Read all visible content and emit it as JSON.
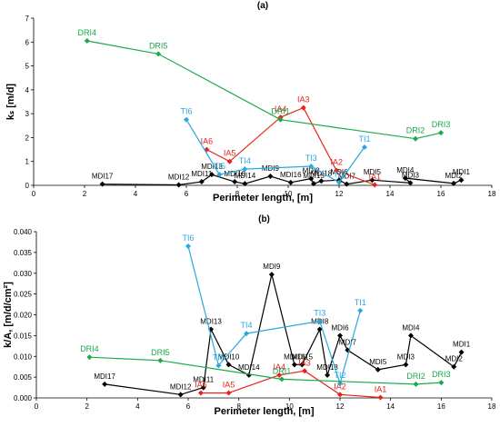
{
  "chart_data": [
    {
      "type": "line",
      "title": "(a)",
      "xlabel": "Perimeter length, [m]",
      "ylabel": "kₛ [m/d]",
      "xlim": [
        0,
        18
      ],
      "ylim": [
        0,
        7
      ],
      "xticks": [
        "0",
        "2",
        "4",
        "6",
        "8",
        "10",
        "12",
        "14",
        "16",
        "18"
      ],
      "yticks": [
        "0",
        "1",
        "2",
        "3",
        "4",
        "5",
        "6",
        "7"
      ],
      "grid": false,
      "series": [
        {
          "color": "#000000",
          "points": [
            {
              "label": "MDI17",
              "x": 2.7,
              "y": 0.05
            },
            {
              "label": "MDI12",
              "x": 5.7,
              "y": 0.02
            },
            {
              "label": "MDI11",
              "x": 6.6,
              "y": 0.15
            },
            {
              "label": "MDI13",
              "x": 7.0,
              "y": 0.45
            },
            {
              "label": "MDI10",
              "x": 7.9,
              "y": 0.15
            },
            {
              "label": "MDI14",
              "x": 8.3,
              "y": 0.07
            },
            {
              "label": "MDI9",
              "x": 9.3,
              "y": 0.38
            },
            {
              "label": "MDI16",
              "x": 10.1,
              "y": 0.12
            },
            {
              "label": "MDI8",
              "x": 10.9,
              "y": 0.28
            },
            {
              "label": "MDI15",
              "x": 11.0,
              "y": 0.07
            },
            {
              "label": "MDI18",
              "x": 11.3,
              "y": 0.18
            },
            {
              "label": "MDI6",
              "x": 12.0,
              "y": 0.22
            },
            {
              "label": "MDI7",
              "x": 12.3,
              "y": 0.05
            },
            {
              "label": "MDI5",
              "x": 13.3,
              "y": 0.22
            },
            {
              "label": "MDI3",
              "x": 14.8,
              "y": 0.1
            },
            {
              "label": "MDI4",
              "x": 14.6,
              "y": 0.3
            },
            {
              "label": "MDI2",
              "x": 16.5,
              "y": 0.08
            },
            {
              "label": "MDI1",
              "x": 16.8,
              "y": 0.22
            }
          ]
        },
        {
          "color": "#e8231a",
          "points": [
            {
              "label": "IA6",
              "x": 6.8,
              "y": 1.5
            },
            {
              "label": "IA5",
              "x": 7.7,
              "y": 1.0
            },
            {
              "label": "IA4",
              "x": 9.7,
              "y": 2.85
            },
            {
              "label": "IA3",
              "x": 10.6,
              "y": 3.25
            },
            {
              "label": "IA2",
              "x": 11.9,
              "y": 0.62
            },
            {
              "label": "IA1",
              "x": 13.4,
              "y": 0.02
            }
          ]
        },
        {
          "color": "#29a8e0",
          "points": [
            {
              "label": "TI6",
              "x": 6.0,
              "y": 2.75
            },
            {
              "label": "TI5",
              "x": 7.3,
              "y": 0.45
            },
            {
              "label": "TI4",
              "x": 8.3,
              "y": 0.68
            },
            {
              "label": "TI3",
              "x": 10.9,
              "y": 0.8
            },
            {
              "label": "TI2",
              "x": 12.0,
              "y": 0.12
            },
            {
              "label": "TI1",
              "x": 13.0,
              "y": 1.6
            }
          ]
        },
        {
          "color": "#1aaa4a",
          "points": [
            {
              "label": "DRI4",
              "x": 2.1,
              "y": 6.05
            },
            {
              "label": "DRI5",
              "x": 4.9,
              "y": 5.5
            },
            {
              "label": "DRI1",
              "x": 9.7,
              "y": 2.75
            },
            {
              "label": "DRI2",
              "x": 15.0,
              "y": 1.95
            },
            {
              "label": "DRI3",
              "x": 16.0,
              "y": 2.2
            }
          ]
        }
      ]
    },
    {
      "type": "line",
      "title": "(b)",
      "xlabel": "Perimeter length, [m]",
      "ylabel": "k/A, [m/d/cm²]",
      "xlim": [
        0,
        18
      ],
      "ylim": [
        0,
        0.04
      ],
      "xticks": [
        "0",
        "2",
        "4",
        "6",
        "8",
        "10",
        "12",
        "14",
        "16",
        "18"
      ],
      "yticks": [
        "0.000",
        "0.005",
        "0.010",
        "0.015",
        "0.020",
        "0.025",
        "0.030",
        "0.035",
        "0.040"
      ],
      "grid": false,
      "series": [
        {
          "color": "#000000",
          "points": [
            {
              "label": "MDI17",
              "x": 2.7,
              "y": 0.0033
            },
            {
              "label": "MDI12",
              "x": 5.7,
              "y": 0.0008
            },
            {
              "label": "MDI11",
              "x": 6.6,
              "y": 0.0025
            },
            {
              "label": "MDI13",
              "x": 6.9,
              "y": 0.0165
            },
            {
              "label": "MDI10",
              "x": 7.6,
              "y": 0.008
            },
            {
              "label": "MDI14",
              "x": 8.4,
              "y": 0.0055
            },
            {
              "label": "MDI9",
              "x": 9.3,
              "y": 0.0297
            },
            {
              "label": "MDI16",
              "x": 10.2,
              "y": 0.008
            },
            {
              "label": "MDI15",
              "x": 10.5,
              "y": 0.008
            },
            {
              "label": "MDI8",
              "x": 11.2,
              "y": 0.0165
            },
            {
              "label": "MDI18",
              "x": 11.5,
              "y": 0.0055
            },
            {
              "label": "MDI6",
              "x": 12.0,
              "y": 0.015
            },
            {
              "label": "MDI7",
              "x": 12.3,
              "y": 0.0115
            },
            {
              "label": "MDI5",
              "x": 13.5,
              "y": 0.0068
            },
            {
              "label": "MDI3",
              "x": 14.6,
              "y": 0.008
            },
            {
              "label": "MDI4",
              "x": 14.8,
              "y": 0.015
            },
            {
              "label": "MDI2",
              "x": 16.5,
              "y": 0.0075
            },
            {
              "label": "MDI1",
              "x": 16.8,
              "y": 0.011
            }
          ]
        },
        {
          "color": "#e8231a",
          "points": [
            {
              "label": "IA6",
              "x": 6.5,
              "y": 0.0012
            },
            {
              "label": "IA5",
              "x": 7.6,
              "y": 0.0012
            },
            {
              "label": "IA4",
              "x": 9.6,
              "y": 0.0055
            },
            {
              "label": "IA3",
              "x": 10.6,
              "y": 0.0065
            },
            {
              "label": "IA2",
              "x": 12.0,
              "y": 0.0008
            },
            {
              "label": "IA1",
              "x": 13.6,
              "y": 0.0001
            }
          ]
        },
        {
          "color": "#29a8e0",
          "points": [
            {
              "label": "TI6",
              "x": 6.0,
              "y": 0.0365
            },
            {
              "label": "TI5",
              "x": 7.2,
              "y": 0.0078
            },
            {
              "label": "TI4",
              "x": 8.3,
              "y": 0.0155
            },
            {
              "label": "TI3",
              "x": 11.2,
              "y": 0.0185
            },
            {
              "label": "TI2",
              "x": 12.0,
              "y": 0.0035
            },
            {
              "label": "TI1",
              "x": 12.8,
              "y": 0.021
            }
          ]
        },
        {
          "color": "#1aaa4a",
          "points": [
            {
              "label": "DRI4",
              "x": 2.1,
              "y": 0.0098
            },
            {
              "label": "DRI5",
              "x": 4.9,
              "y": 0.009
            },
            {
              "label": "DRI1",
              "x": 9.7,
              "y": 0.0045
            },
            {
              "label": "DRI2",
              "x": 15.0,
              "y": 0.0033
            },
            {
              "label": "DRI3",
              "x": 16.0,
              "y": 0.0037
            }
          ]
        }
      ]
    }
  ]
}
